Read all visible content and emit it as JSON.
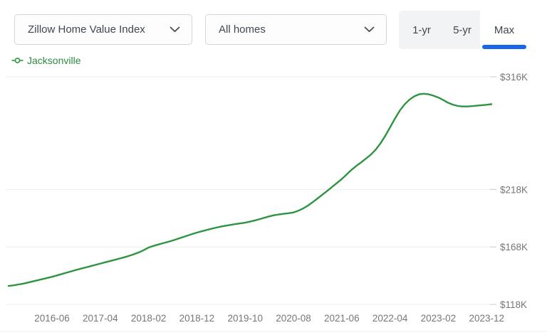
{
  "header": {
    "metric_dropdown": {
      "value": "Zillow Home Value Index"
    },
    "segment_dropdown": {
      "value": "All homes"
    },
    "range_tabs": [
      {
        "label": "1-yr",
        "selected": false
      },
      {
        "label": "5-yr",
        "selected": false
      },
      {
        "label": "Max",
        "selected": true
      }
    ]
  },
  "legend": {
    "series_label": "Jacksonville"
  },
  "colors": {
    "line": "#2e9440",
    "legend_text": "#2e8b41",
    "accent_blue": "#1766e8",
    "axis_text": "#73777b",
    "grid": "#ededee",
    "tick": "#c7cbce",
    "bottom_rule": "#e9ebed"
  },
  "chart_data": {
    "type": "line",
    "title": "",
    "xlabel": "",
    "ylabel": "",
    "unit": "thousand USD",
    "legend_position": "top-left",
    "grid": "horizontal",
    "y_axis_side": "right",
    "y_tick_labels": [
      "$316K",
      "$218K",
      "$168K",
      "$118K"
    ],
    "y_tick_values": [
      316,
      218,
      168,
      118
    ],
    "y_range": [
      118,
      316
    ],
    "x_tick_labels": [
      "2016-06",
      "2017-04",
      "2018-02",
      "2018-12",
      "2019-10",
      "2020-08",
      "2021-06",
      "2022-04",
      "2023-02",
      "2023-12"
    ],
    "x_tick_month_indices": [
      9,
      19,
      29,
      39,
      49,
      59,
      69,
      79,
      89,
      99
    ],
    "series": [
      {
        "name": "Jacksonville",
        "start_date": "2015-09",
        "end_date": "2024-01",
        "frequency": "monthly",
        "values": [
          134,
          134.6,
          135.3,
          136,
          137,
          138,
          139,
          140,
          141,
          142,
          143.2,
          144.4,
          145.6,
          146.8,
          148,
          149.1,
          150.2,
          151.3,
          152.4,
          153.5,
          154.6,
          155.7,
          156.8,
          157.9,
          159,
          160.3,
          161.7,
          163.3,
          165.2,
          167.5,
          168.9,
          170.1,
          171.3,
          172.4,
          173.6,
          175,
          176.4,
          177.8,
          179.2,
          180.5,
          181.6,
          182.7,
          183.8,
          184.8,
          185.7,
          186.5,
          187.2,
          187.9,
          188.5,
          189.1,
          190,
          191.1,
          192.2,
          193.4,
          194.6,
          195.6,
          196.3,
          196.8,
          197.3,
          198,
          199.5,
          201.5,
          204,
          207,
          210.2,
          213.5,
          216.8,
          220.2,
          223.6,
          227,
          231,
          235,
          238.5,
          241.5,
          244.8,
          248.2,
          252.5,
          258,
          264.5,
          272,
          279.5,
          286.5,
          292,
          296,
          299,
          300.8,
          301.3,
          300.8,
          299.6,
          298,
          295.8,
          293.5,
          291.8,
          290.7,
          290.2,
          290.2,
          290.5,
          290.9,
          291.3,
          291.7,
          292.2
        ]
      }
    ]
  }
}
